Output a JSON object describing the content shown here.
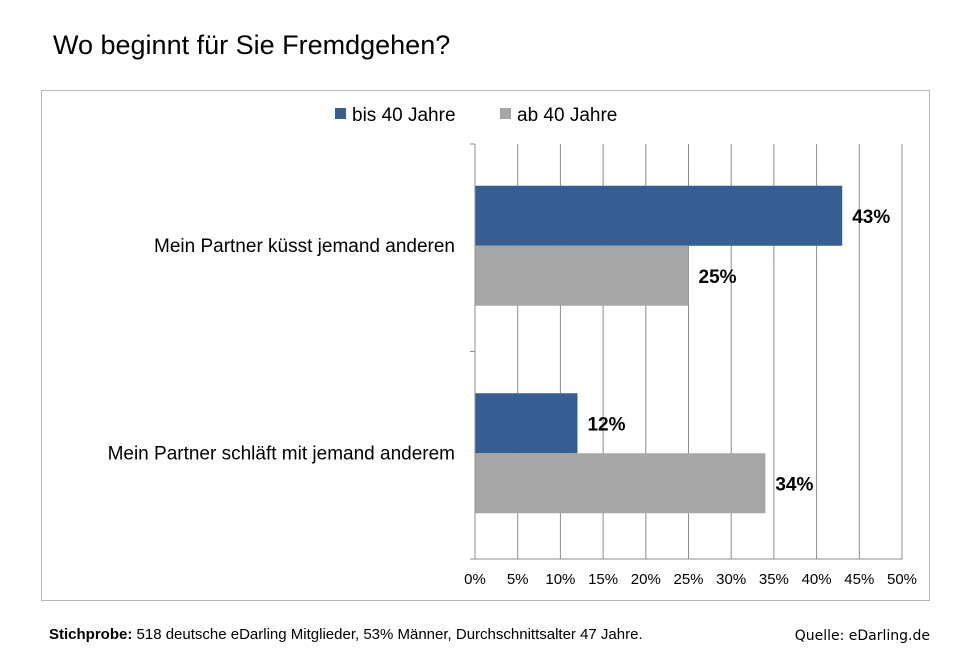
{
  "title": "Wo beginnt für Sie Fremdgehen?",
  "footer": {
    "lead": "Stichprobe:",
    "text": "518 deutsche eDarling Mitglieder, 53% Männer, Durchschnittsalter 47 Jahre.",
    "source": "Quelle: eDarling.de"
  },
  "colors": {
    "series_1": "#355f92",
    "series_2": "#a6a6a6",
    "grid": "#8c8c8c"
  },
  "chart_data": {
    "type": "bar",
    "orientation": "horizontal",
    "title": "Wo beginnt für Sie Fremdgehen?",
    "categories": [
      "Mein Partner küsst jemand anderen",
      "Mein Partner schläft mit jemand anderem"
    ],
    "series": [
      {
        "name": "bis 40 Jahre",
        "values": [
          43,
          12
        ],
        "labels": [
          "43%",
          "12%"
        ]
      },
      {
        "name": "ab 40 Jahre",
        "values": [
          25,
          34
        ],
        "labels": [
          "25%",
          "34%"
        ]
      }
    ],
    "xlim": [
      0,
      50
    ],
    "x_ticks": [
      0,
      5,
      10,
      15,
      20,
      25,
      30,
      35,
      40,
      45,
      50
    ],
    "x_tick_labels": [
      "0%",
      "5%",
      "10%",
      "15%",
      "20%",
      "25%",
      "30%",
      "35%",
      "40%",
      "45%",
      "50%"
    ],
    "grid": true,
    "legend_position": "top"
  }
}
